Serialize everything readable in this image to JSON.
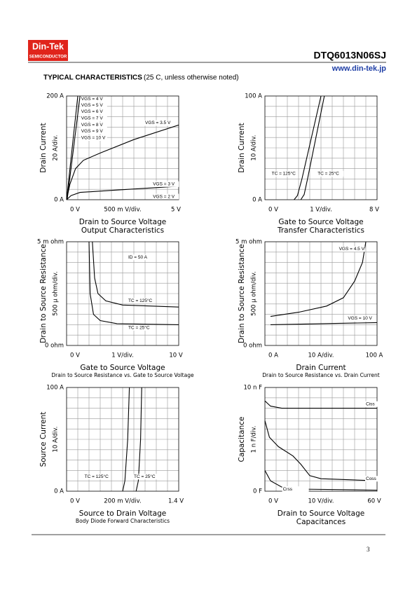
{
  "header": {
    "logo": "Din-Tek",
    "logo_sub": "SEMICONDUCTOR",
    "part": "DTQ6013N06SJ",
    "url": "www.din-tek.jp",
    "section": "TYPICAL CHARACTERISTICS",
    "section_note": "(25  C, unless otherwise noted)"
  },
  "charts": [
    {
      "y_top": "200  A",
      "y_bottom": "0  A",
      "y_div": "20  A/div.",
      "y_title": "Drain Current",
      "x_left": "0  V",
      "x_mid": "500 m  V/div.",
      "x_right": "5  V",
      "x_title": "Drain to Source Voltage",
      "caption": "Output Characteristics",
      "annotations": [
        "VGS = 4 V",
        "VGS = 5 V",
        "VGS = 6 V",
        "VGS = 7 V",
        "VGS = 8 V",
        "VGS = 9 V",
        "VGS = 10 V",
        "VGS = 3.5 V",
        "VGS = 3 V",
        "VGS = 2 V"
      ]
    },
    {
      "y_top": "100  A",
      "y_bottom": "0  A",
      "y_div": "10  A/div.",
      "y_title": "Drain Current",
      "x_left": "0  V",
      "x_mid": "1  V/div.",
      "x_right": "8  V",
      "x_title": "Gate to Source Voltage",
      "caption": "Transfer Characteristics",
      "annotations": [
        "TC = 125°C",
        "TC = 25°C"
      ]
    },
    {
      "y_top": "5 m ohm",
      "y_bottom": "0  ohm",
      "y_div": "500 µ ohm/div.",
      "y_title": "Drain to Source Resistance",
      "x_left": "0  V",
      "x_mid": "1  V/div.",
      "x_right": "10  V",
      "x_title": "Gate to Source Voltage",
      "caption": "Drain to Source Resistance vs. Gate to Source Voltage",
      "annotations": [
        "ID = 50 A",
        "TC = 125°C",
        "TC = 25°C"
      ]
    },
    {
      "y_top": "5 m ohm",
      "y_bottom": "0  ohm",
      "y_div": "500 µ ohm/div.",
      "y_title": "Drain to Source Resistance",
      "x_left": "0  A",
      "x_mid": "10  A/div.",
      "x_right": "100  A",
      "x_title": "Drain Current",
      "caption": "Drain to Source Resistance vs. Drain Current",
      "annotations": [
        "VGS = 4.5 V",
        "VGS = 10 V"
      ]
    },
    {
      "y_top": "100  A",
      "y_bottom": "0  A",
      "y_div": "10  A/div.",
      "y_title": "Source Current",
      "x_left": "0  V",
      "x_mid": "200 m  V/div.",
      "x_right": "1.4  V",
      "x_title": "Source to Drain Voltage",
      "caption": "Body Diode Forward Characteristics",
      "annotations": [
        "TC = 125°C",
        "TC = 25°C"
      ]
    },
    {
      "y_top": "10 n  F",
      "y_bottom": "0  F",
      "y_div": "1 n  F/div.",
      "y_title": "Capacitance",
      "x_left": "0  V",
      "x_mid": "10  V/div.",
      "x_right": "60  V",
      "x_title": "Drain to Source Voltage",
      "caption": "Capacitances",
      "annotations": [
        "Ciss",
        "Coss",
        "Crss"
      ]
    }
  ],
  "footer": {
    "page": "3"
  }
}
